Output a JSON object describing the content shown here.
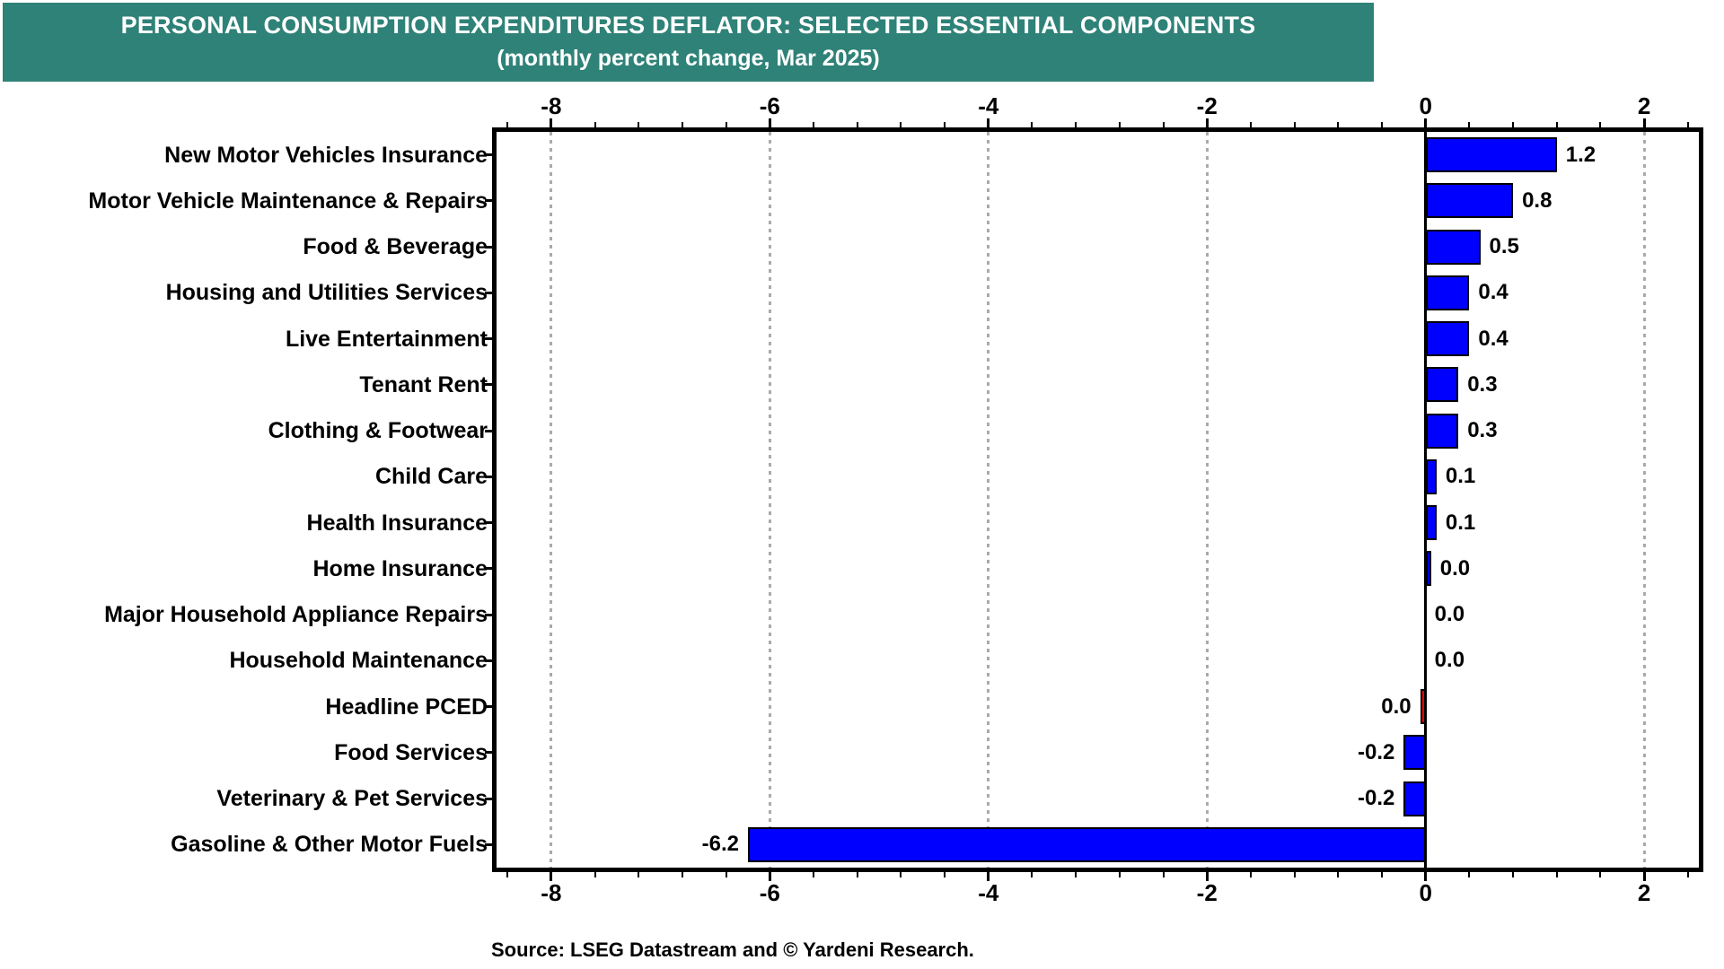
{
  "banner": {
    "title": "PERSONAL CONSUMPTION EXPENDITURES DEFLATOR: SELECTED ESSENTIAL COMPONENTS",
    "subtitle": "(monthly percent change, Mar 2025)",
    "background": "#2f8278",
    "text_color": "#ffffff"
  },
  "source": "Source: LSEG Datastream and © Yardeni Research.",
  "colors": {
    "bar_blue": "#0000fe",
    "bar_red": "#f40000",
    "bar_border": "#000000",
    "grid": "#aaaaaa",
    "axis": "#000000",
    "text": "#000000",
    "background": "#ffffff"
  },
  "chart_data": {
    "type": "bar",
    "orientation": "horizontal",
    "title": "PERSONAL CONSUMPTION EXPENDITURES DEFLATOR: SELECTED ESSENTIAL COMPONENTS",
    "subtitle": "(monthly percent change, Mar 2025)",
    "xlabel": "monthly percent change",
    "xlim": [
      -8.5,
      2.5
    ],
    "x_major_ticks": [
      -8,
      -6,
      -4,
      -2,
      0,
      2
    ],
    "x_minor_tick_step": 0.4,
    "grid": "vertical dotted gridlines at major ticks except zero; solid black zero line",
    "legend": "none",
    "bars": [
      {
        "label": "New Motor Vehicles Insurance",
        "value": 1.2,
        "display": "1.2",
        "color": "blue"
      },
      {
        "label": "Motor Vehicle Maintenance & Repairs",
        "value": 0.8,
        "display": "0.8",
        "color": "blue"
      },
      {
        "label": "Food & Beverage",
        "value": 0.5,
        "display": "0.5",
        "color": "blue"
      },
      {
        "label": "Housing and Utilities Services",
        "value": 0.4,
        "display": "0.4",
        "color": "blue"
      },
      {
        "label": "Live Entertainment",
        "value": 0.4,
        "display": "0.4",
        "color": "blue"
      },
      {
        "label": "Tenant Rent",
        "value": 0.3,
        "display": "0.3",
        "color": "blue"
      },
      {
        "label": "Clothing & Footwear",
        "value": 0.3,
        "display": "0.3",
        "color": "blue"
      },
      {
        "label": "Child Care",
        "value": 0.1,
        "display": "0.1",
        "color": "blue"
      },
      {
        "label": "Health Insurance",
        "value": 0.1,
        "display": "0.1",
        "color": "blue"
      },
      {
        "label": "Home Insurance",
        "value": 0.05,
        "display": "0.0",
        "color": "blue"
      },
      {
        "label": "Major Household Appliance Repairs",
        "value": 0.0,
        "display": "0.0",
        "color": "blue"
      },
      {
        "label": "Household Maintenance",
        "value": 0.0,
        "display": "0.0",
        "color": "blue"
      },
      {
        "label": "Headline PCED",
        "value": -0.05,
        "display": "0.0",
        "color": "red"
      },
      {
        "label": "Food Services",
        "value": -0.2,
        "display": "-0.2",
        "color": "blue"
      },
      {
        "label": "Veterinary & Pet Services",
        "value": -0.2,
        "display": "-0.2",
        "color": "blue"
      },
      {
        "label": "Gasoline & Other Motor Fuels",
        "value": -6.2,
        "display": "-6.2",
        "color": "blue"
      }
    ]
  }
}
